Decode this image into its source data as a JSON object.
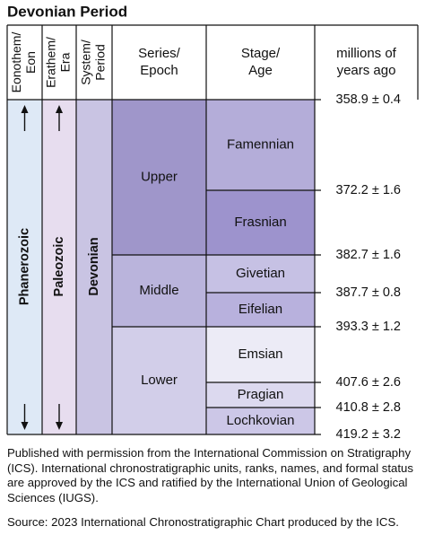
{
  "title": "Devonian Period",
  "table": {
    "headers": [
      [
        "Eonothem/",
        "Eon"
      ],
      [
        "Erathem/",
        "Era"
      ],
      [
        "System/",
        "Period"
      ],
      [
        "Series/",
        "Epoch"
      ],
      [
        "Stage/",
        "Age"
      ],
      [
        "millions of",
        "years ago"
      ]
    ],
    "eon": "Phanerozoic",
    "era": "Paleozoic",
    "system": "Devonian",
    "series": [
      "Upper",
      "Middle",
      "Lower"
    ],
    "stages": [
      "Famennian",
      "Frasnian",
      "Givetian",
      "Eifelian",
      "Emsian",
      "Pragian",
      "Lochkovian"
    ],
    "ages": [
      "358.9 ± 0.4",
      "372.2 ± 1.6",
      "382.7 ± 1.6",
      "387.7 ± 0.8",
      "393.3 ± 1.2",
      "407.6 ± 2.6",
      "410.8 ± 2.8",
      "419.2 ± 3.2"
    ]
  },
  "footer": {
    "note": "Published with permission from the International Commission on Stratigraphy (ICS). International chronostratigraphic units, ranks, names, and formal status are approved by the ICS and ratified by the International Union of Geological Sciences (IUGS).",
    "source": "Source: 2023 International Chronostratigraphic Chart produced by the ICS."
  }
}
